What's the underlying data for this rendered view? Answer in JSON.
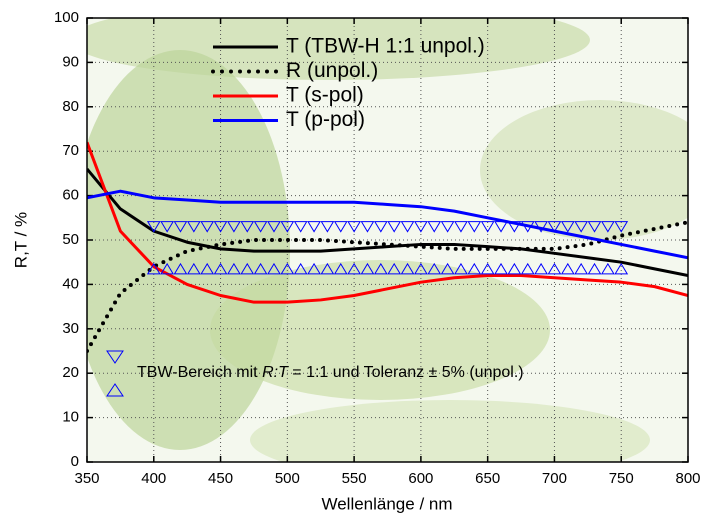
{
  "chart_data": {
    "type": "line",
    "xlabel": "Wellenlänge / nm",
    "ylabel": "R,T / %",
    "xlim": [
      350,
      800
    ],
    "ylim": [
      0,
      100
    ],
    "xticks": [
      350,
      400,
      450,
      500,
      550,
      600,
      650,
      700,
      750,
      800
    ],
    "yticks": [
      0,
      10,
      20,
      30,
      40,
      50,
      60,
      70,
      80,
      90,
      100
    ],
    "grid": true,
    "legend": "top",
    "x": [
      350,
      375,
      400,
      425,
      450,
      475,
      500,
      525,
      550,
      575,
      600,
      625,
      650,
      675,
      700,
      725,
      750,
      775,
      800
    ],
    "series": [
      {
        "name": "T (TBW-H 1:1 unpol.)",
        "color": "#000000",
        "dash": false,
        "values": [
          66,
          57,
          52,
          49.5,
          48,
          47.5,
          47.5,
          47.5,
          48,
          48.5,
          49,
          49,
          48.5,
          48,
          47,
          46,
          45,
          43.5,
          42
        ]
      },
      {
        "name": "R (unpol.)",
        "color": "#000000",
        "dash": true,
        "values": [
          25,
          38,
          44,
          47.5,
          49,
          50,
          50,
          50,
          49.5,
          49,
          48.5,
          48,
          48,
          48,
          48,
          49,
          51,
          52.5,
          54
        ]
      },
      {
        "name": "T (s-pol)",
        "color": "#ff0000",
        "dash": false,
        "values": [
          72,
          52,
          44,
          40,
          37.5,
          36,
          36,
          36.5,
          37.5,
          39,
          40.5,
          41.5,
          42,
          42,
          41.5,
          41,
          40.5,
          39.5,
          37.5
        ]
      },
      {
        "name": "T (p-pol)",
        "color": "#0000ff",
        "dash": false,
        "values": [
          59.5,
          61,
          59.5,
          59,
          58.5,
          58.5,
          58.5,
          58.5,
          58.5,
          58,
          57.5,
          56.5,
          55,
          53.5,
          52,
          50.5,
          49,
          47.5,
          46
        ]
      }
    ],
    "markers": [
      {
        "marker": "down",
        "color": "#0000ff",
        "x": [
          400,
          410,
          420,
          430,
          440,
          450,
          460,
          470,
          480,
          490,
          500,
          510,
          520,
          530,
          540,
          550,
          560,
          570,
          580,
          590,
          600,
          610,
          620,
          630,
          640,
          650,
          660,
          670,
          680,
          690,
          700,
          710,
          720,
          730,
          740,
          750
        ],
        "values": [
          53,
          53,
          53,
          53,
          53,
          53,
          53,
          53,
          53,
          53,
          53,
          53,
          53,
          53,
          53,
          53,
          53,
          53,
          53,
          53,
          53,
          53,
          53,
          53,
          53,
          53,
          53,
          53,
          53,
          53,
          53,
          53,
          53,
          53,
          53,
          53
        ]
      },
      {
        "marker": "up",
        "color": "#0000ff",
        "x": [
          400,
          410,
          420,
          430,
          440,
          450,
          460,
          470,
          480,
          490,
          500,
          510,
          520,
          530,
          540,
          550,
          560,
          570,
          580,
          590,
          600,
          610,
          620,
          630,
          640,
          650,
          660,
          670,
          680,
          690,
          700,
          710,
          720,
          730,
          740,
          750
        ],
        "values": [
          43.5,
          43.5,
          43.5,
          43.5,
          43.5,
          43.5,
          43.5,
          43.5,
          43.5,
          43.5,
          43.5,
          43.5,
          43.5,
          43.5,
          43.5,
          43.5,
          43.5,
          43.5,
          43.5,
          43.5,
          43.5,
          43.5,
          43.5,
          43.5,
          43.5,
          43.5,
          43.5,
          43.5,
          43.5,
          43.5,
          43.5,
          43.5,
          43.5,
          43.5,
          43.5,
          43.5
        ]
      }
    ],
    "annotation": [
      "TBW-Bereich mit ",
      "R:T",
      " = 1:1 und Toleranz ± 5% (unpol.)"
    ]
  }
}
